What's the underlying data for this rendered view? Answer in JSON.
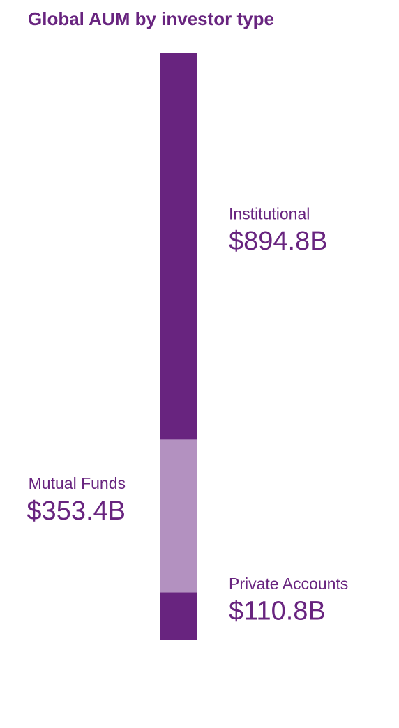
{
  "chart_data": {
    "type": "bar",
    "stacked": true,
    "title": "Global AUM by investor type",
    "series": [
      {
        "name": "Private Accounts",
        "color": "#68247f",
        "values": [
          110.8
        ],
        "value_labels": [
          "$110.8B"
        ]
      },
      {
        "name": "Mutual Funds",
        "color": "#b391c0",
        "values": [
          353.4
        ],
        "value_labels": [
          "$353.4B"
        ]
      },
      {
        "name": "Institutional",
        "color": "#68247f",
        "values": [
          894.8
        ],
        "value_labels": [
          "$894.8B"
        ]
      }
    ]
  }
}
